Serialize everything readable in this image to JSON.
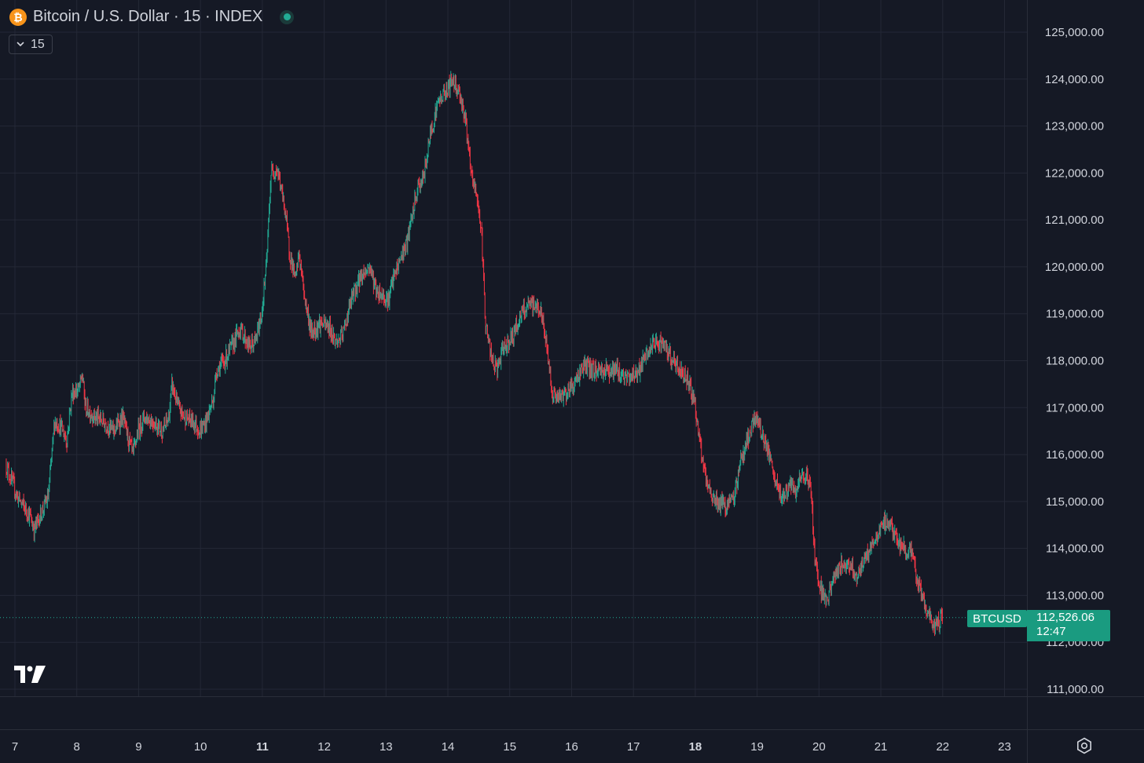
{
  "header": {
    "coin_icon": "bitcoin-icon",
    "coin_glyph": "₿",
    "title": "Bitcoin / U.S. Dollar · 15 · INDEX",
    "status_icon": "market-status-dot-icon"
  },
  "interval": {
    "icon": "chevron-down-icon",
    "value": "15"
  },
  "logo": {
    "icon": "tradingview-logo-icon",
    "text": "TV"
  },
  "last_price": {
    "symbol": "BTCUSD",
    "price": "112,526.06",
    "countdown": "12:47"
  },
  "settings": {
    "icon": "settings-gear-icon"
  },
  "colors": {
    "background": "#151925",
    "grid": "#242836",
    "up": "#22ab94",
    "down": "#f23645",
    "label": "#1a9b80",
    "text": "#d1d4dc"
  },
  "chart_data": {
    "type": "candlestick",
    "title": "Bitcoin / U.S. Dollar · 15 · INDEX",
    "interval": "15",
    "ylim": [
      110700,
      125500
    ],
    "xlim": [
      6.86,
      23.5
    ],
    "y_ticks": [
      "125,000.00",
      "124,000.00",
      "123,000.00",
      "122,000.00",
      "121,000.00",
      "120,000.00",
      "119,000.00",
      "118,000.00",
      "117,000.00",
      "116,000.00",
      "115,000.00",
      "114,000.00",
      "113,000.00",
      "112,000.00",
      "111,000.00"
    ],
    "x_ticks": [
      {
        "day": 7,
        "label": "7",
        "bold": false
      },
      {
        "day": 8,
        "label": "8",
        "bold": false
      },
      {
        "day": 9,
        "label": "9",
        "bold": false
      },
      {
        "day": 10,
        "label": "10",
        "bold": false
      },
      {
        "day": 11,
        "label": "11",
        "bold": true
      },
      {
        "day": 12,
        "label": "12",
        "bold": false
      },
      {
        "day": 13,
        "label": "13",
        "bold": false
      },
      {
        "day": 14,
        "label": "14",
        "bold": false
      },
      {
        "day": 15,
        "label": "15",
        "bold": false
      },
      {
        "day": 16,
        "label": "16",
        "bold": false
      },
      {
        "day": 17,
        "label": "17",
        "bold": false
      },
      {
        "day": 18,
        "label": "18",
        "bold": true
      },
      {
        "day": 19,
        "label": "19",
        "bold": false
      },
      {
        "day": 20,
        "label": "20",
        "bold": false
      },
      {
        "day": 21,
        "label": "21",
        "bold": false
      },
      {
        "day": 22,
        "label": "22",
        "bold": false
      },
      {
        "day": 23,
        "label": "23",
        "bold": false
      }
    ],
    "last_price": 112526.06,
    "grid": true,
    "path": [
      [
        6.86,
        115800
      ],
      [
        7.05,
        115100
      ],
      [
        7.25,
        114700
      ],
      [
        7.32,
        114400
      ],
      [
        7.45,
        114800
      ],
      [
        7.55,
        115100
      ],
      [
        7.65,
        116700
      ],
      [
        7.75,
        116600
      ],
      [
        7.85,
        116300
      ],
      [
        7.93,
        117300
      ],
      [
        8.05,
        117400
      ],
      [
        8.1,
        117700
      ],
      [
        8.15,
        117000
      ],
      [
        8.3,
        116800
      ],
      [
        8.45,
        116700
      ],
      [
        8.6,
        116500
      ],
      [
        8.75,
        116800
      ],
      [
        8.85,
        116300
      ],
      [
        8.92,
        116000
      ],
      [
        9.0,
        116500
      ],
      [
        9.1,
        116800
      ],
      [
        9.25,
        116700
      ],
      [
        9.4,
        116500
      ],
      [
        9.5,
        116800
      ],
      [
        9.55,
        117500
      ],
      [
        9.65,
        117000
      ],
      [
        9.75,
        116800
      ],
      [
        9.9,
        116700
      ],
      [
        10.0,
        116500
      ],
      [
        10.1,
        116700
      ],
      [
        10.22,
        117200
      ],
      [
        10.27,
        117800
      ],
      [
        10.4,
        118000
      ],
      [
        10.55,
        118400
      ],
      [
        10.65,
        118700
      ],
      [
        10.8,
        118300
      ],
      [
        10.9,
        118400
      ],
      [
        11.0,
        119000
      ],
      [
        11.08,
        120100
      ],
      [
        11.15,
        122000
      ],
      [
        11.25,
        122100
      ],
      [
        11.38,
        121200
      ],
      [
        11.45,
        120300
      ],
      [
        11.55,
        119700
      ],
      [
        11.6,
        120300
      ],
      [
        11.7,
        119300
      ],
      [
        11.8,
        118600
      ],
      [
        11.95,
        118800
      ],
      [
        12.1,
        118700
      ],
      [
        12.2,
        118400
      ],
      [
        12.3,
        118500
      ],
      [
        12.45,
        119300
      ],
      [
        12.6,
        119800
      ],
      [
        12.75,
        120000
      ],
      [
        12.85,
        119500
      ],
      [
        12.95,
        119400
      ],
      [
        13.05,
        119300
      ],
      [
        13.12,
        119700
      ],
      [
        13.25,
        120200
      ],
      [
        13.35,
        120500
      ],
      [
        13.45,
        121200
      ],
      [
        13.53,
        121700
      ],
      [
        13.62,
        121900
      ],
      [
        13.72,
        122800
      ],
      [
        13.85,
        123500
      ],
      [
        14.0,
        123800
      ],
      [
        14.1,
        124000
      ],
      [
        14.2,
        123700
      ],
      [
        14.3,
        123100
      ],
      [
        14.38,
        122000
      ],
      [
        14.48,
        121500
      ],
      [
        14.55,
        120800
      ],
      [
        14.62,
        118800
      ],
      [
        14.72,
        118000
      ],
      [
        14.8,
        117800
      ],
      [
        14.92,
        118300
      ],
      [
        15.05,
        118500
      ],
      [
        15.2,
        119000
      ],
      [
        15.35,
        119200
      ],
      [
        15.5,
        119100
      ],
      [
        15.6,
        118400
      ],
      [
        15.7,
        117300
      ],
      [
        15.8,
        117200
      ],
      [
        15.9,
        117300
      ],
      [
        16.05,
        117500
      ],
      [
        16.2,
        117900
      ],
      [
        16.35,
        117800
      ],
      [
        16.55,
        117800
      ],
      [
        16.75,
        117800
      ],
      [
        16.9,
        117600
      ],
      [
        17.0,
        117700
      ],
      [
        17.1,
        117800
      ],
      [
        17.3,
        118300
      ],
      [
        17.45,
        118400
      ],
      [
        17.6,
        118100
      ],
      [
        17.75,
        117800
      ],
      [
        17.9,
        117600
      ],
      [
        18.0,
        117100
      ],
      [
        18.1,
        116100
      ],
      [
        18.2,
        115300
      ],
      [
        18.35,
        115000
      ],
      [
        18.5,
        114900
      ],
      [
        18.62,
        115000
      ],
      [
        18.75,
        115900
      ],
      [
        18.9,
        116500
      ],
      [
        19.0,
        116800
      ],
      [
        19.1,
        116400
      ],
      [
        19.2,
        116000
      ],
      [
        19.3,
        115400
      ],
      [
        19.4,
        115100
      ],
      [
        19.55,
        115300
      ],
      [
        19.65,
        115200
      ],
      [
        19.72,
        115500
      ],
      [
        19.82,
        115600
      ],
      [
        19.88,
        115200
      ],
      [
        19.95,
        113700
      ],
      [
        20.05,
        113100
      ],
      [
        20.15,
        112900
      ],
      [
        20.25,
        113400
      ],
      [
        20.35,
        113600
      ],
      [
        20.45,
        113700
      ],
      [
        20.55,
        113600
      ],
      [
        20.62,
        113400
      ],
      [
        20.7,
        113600
      ],
      [
        20.8,
        113900
      ],
      [
        20.92,
        114200
      ],
      [
        21.0,
        114400
      ],
      [
        21.1,
        114600
      ],
      [
        21.2,
        114400
      ],
      [
        21.3,
        114100
      ],
      [
        21.4,
        114000
      ],
      [
        21.5,
        113900
      ],
      [
        21.6,
        113300
      ],
      [
        21.7,
        112900
      ],
      [
        21.78,
        112600
      ],
      [
        21.85,
        112300
      ],
      [
        21.92,
        112400
      ],
      [
        22.0,
        112526
      ]
    ],
    "ranges": [
      [
        6.86,
        7.35,
        114400,
        115800
      ],
      [
        7.35,
        7.65,
        114350,
        115200
      ],
      [
        7.65,
        8.0,
        115300,
        117700
      ],
      [
        8.0,
        8.4,
        116800,
        117800
      ],
      [
        8.4,
        8.95,
        115950,
        117000
      ],
      [
        8.95,
        9.45,
        116400,
        117000
      ],
      [
        9.45,
        9.75,
        116600,
        117750
      ],
      [
        9.75,
        10.25,
        116400,
        117100
      ],
      [
        10.25,
        10.7,
        117500,
        118700
      ],
      [
        10.7,
        11.05,
        118100,
        119000
      ],
      [
        11.05,
        11.45,
        120300,
        122300
      ],
      [
        11.45,
        11.8,
        118600,
        121200
      ],
      [
        11.8,
        12.45,
        118100,
        119300
      ],
      [
        12.45,
        13.0,
        119000,
        120300
      ],
      [
        13.0,
        13.55,
        119100,
        121900
      ],
      [
        13.55,
        13.95,
        121800,
        123500
      ],
      [
        13.95,
        14.3,
        123000,
        124150
      ],
      [
        14.3,
        14.62,
        120700,
        122200
      ],
      [
        14.62,
        15.05,
        117300,
        118800
      ],
      [
        15.05,
        15.6,
        118200,
        119300
      ],
      [
        15.6,
        16.1,
        116900,
        117400
      ],
      [
        16.1,
        16.95,
        117300,
        118100
      ],
      [
        16.95,
        17.45,
        117500,
        118500
      ],
      [
        17.45,
        17.98,
        117400,
        118400
      ],
      [
        17.98,
        18.62,
        114800,
        117100
      ],
      [
        18.62,
        19.05,
        115200,
        117100
      ],
      [
        19.05,
        19.45,
        114700,
        116400
      ],
      [
        19.45,
        19.9,
        115000,
        115900
      ],
      [
        19.9,
        20.25,
        112700,
        113900
      ],
      [
        20.25,
        20.7,
        112500,
        114000
      ],
      [
        20.7,
        21.0,
        113600,
        114300
      ],
      [
        21.0,
        21.35,
        113800,
        114800
      ],
      [
        21.35,
        21.7,
        112600,
        114100
      ],
      [
        21.7,
        22.0,
        112000,
        112950
      ]
    ]
  }
}
